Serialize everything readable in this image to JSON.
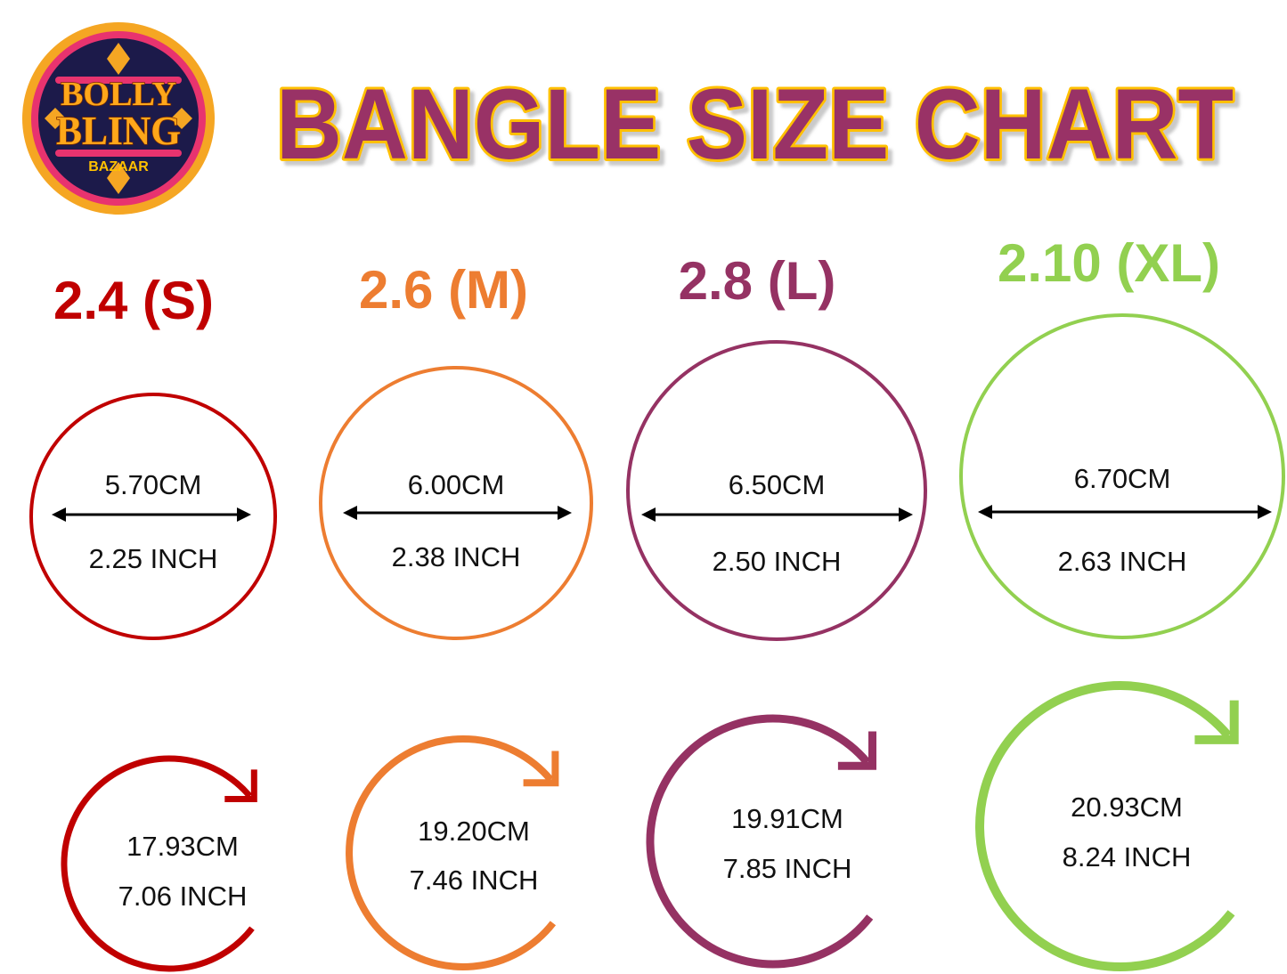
{
  "logo": {
    "line1": "BOLLY",
    "line2": "BLING",
    "line3": "BAZAAR"
  },
  "title": "BANGLE SIZE CHART",
  "colors": {
    "title_fill": "#993366",
    "title_outline": "#ffc000",
    "small": "#c00000",
    "medium": "#ed7d31",
    "large": "#953263",
    "xlarge": "#92d050"
  },
  "sizes": [
    {
      "label": "2.4 (S)",
      "color": "#c00000",
      "diameter_cm": "5.70CM",
      "diameter_inch": "2.25 INCH",
      "circumference_cm": "17.93CM",
      "circumference_inch": "7.06 INCH"
    },
    {
      "label": "2.6 (M)",
      "color": "#ed7d31",
      "diameter_cm": "6.00CM",
      "diameter_inch": "2.38 INCH",
      "circumference_cm": "19.20CM",
      "circumference_inch": "7.46 INCH"
    },
    {
      "label": "2.8 (L)",
      "color": "#953263",
      "diameter_cm": "6.50CM",
      "diameter_inch": "2.50 INCH",
      "circumference_cm": "19.91CM",
      "circumference_inch": "7.85 INCH"
    },
    {
      "label": "2.10 (XL)",
      "color": "#92d050",
      "diameter_cm": "6.70CM",
      "diameter_inch": "2.63 INCH",
      "circumference_cm": "20.93CM",
      "circumference_inch": "8.24 INCH"
    }
  ]
}
